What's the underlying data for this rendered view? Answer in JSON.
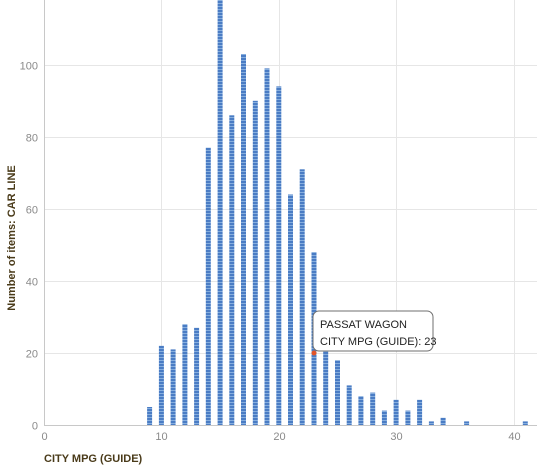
{
  "chart_data": {
    "type": "bar",
    "xlabel": "CITY MPG (GUIDE)",
    "ylabel": "Number of items: CAR LINE",
    "xlim": [
      0,
      42
    ],
    "ylim": [
      0,
      118
    ],
    "x_ticks": [
      0,
      10,
      20,
      30,
      40
    ],
    "y_ticks": [
      0,
      20,
      40,
      60,
      80,
      100
    ],
    "grid": true,
    "series": [
      {
        "x": [
          9,
          10,
          11,
          12,
          13,
          14,
          15,
          16,
          17,
          18,
          19,
          20,
          21,
          22,
          23,
          24,
          25,
          26,
          27,
          28,
          29,
          30,
          31,
          32,
          33,
          34,
          36,
          41
        ],
        "values": [
          5,
          22,
          21,
          28,
          27,
          77,
          118,
          86,
          103,
          90,
          99,
          94,
          64,
          71,
          48,
          24,
          18,
          11,
          8,
          9,
          4,
          7,
          4,
          7,
          1,
          2,
          1,
          1
        ]
      }
    ],
    "colors": {
      "bar": "#4a7cc4",
      "bar_stripe": "#86aede",
      "grid": "#e6e6e6",
      "highlight_point": "#e0542a"
    },
    "tooltip": {
      "title": "PASSAT WAGON",
      "detail": "CITY MPG (GUIDE): 23",
      "anchor_x": 23,
      "anchor_y": 20
    }
  }
}
